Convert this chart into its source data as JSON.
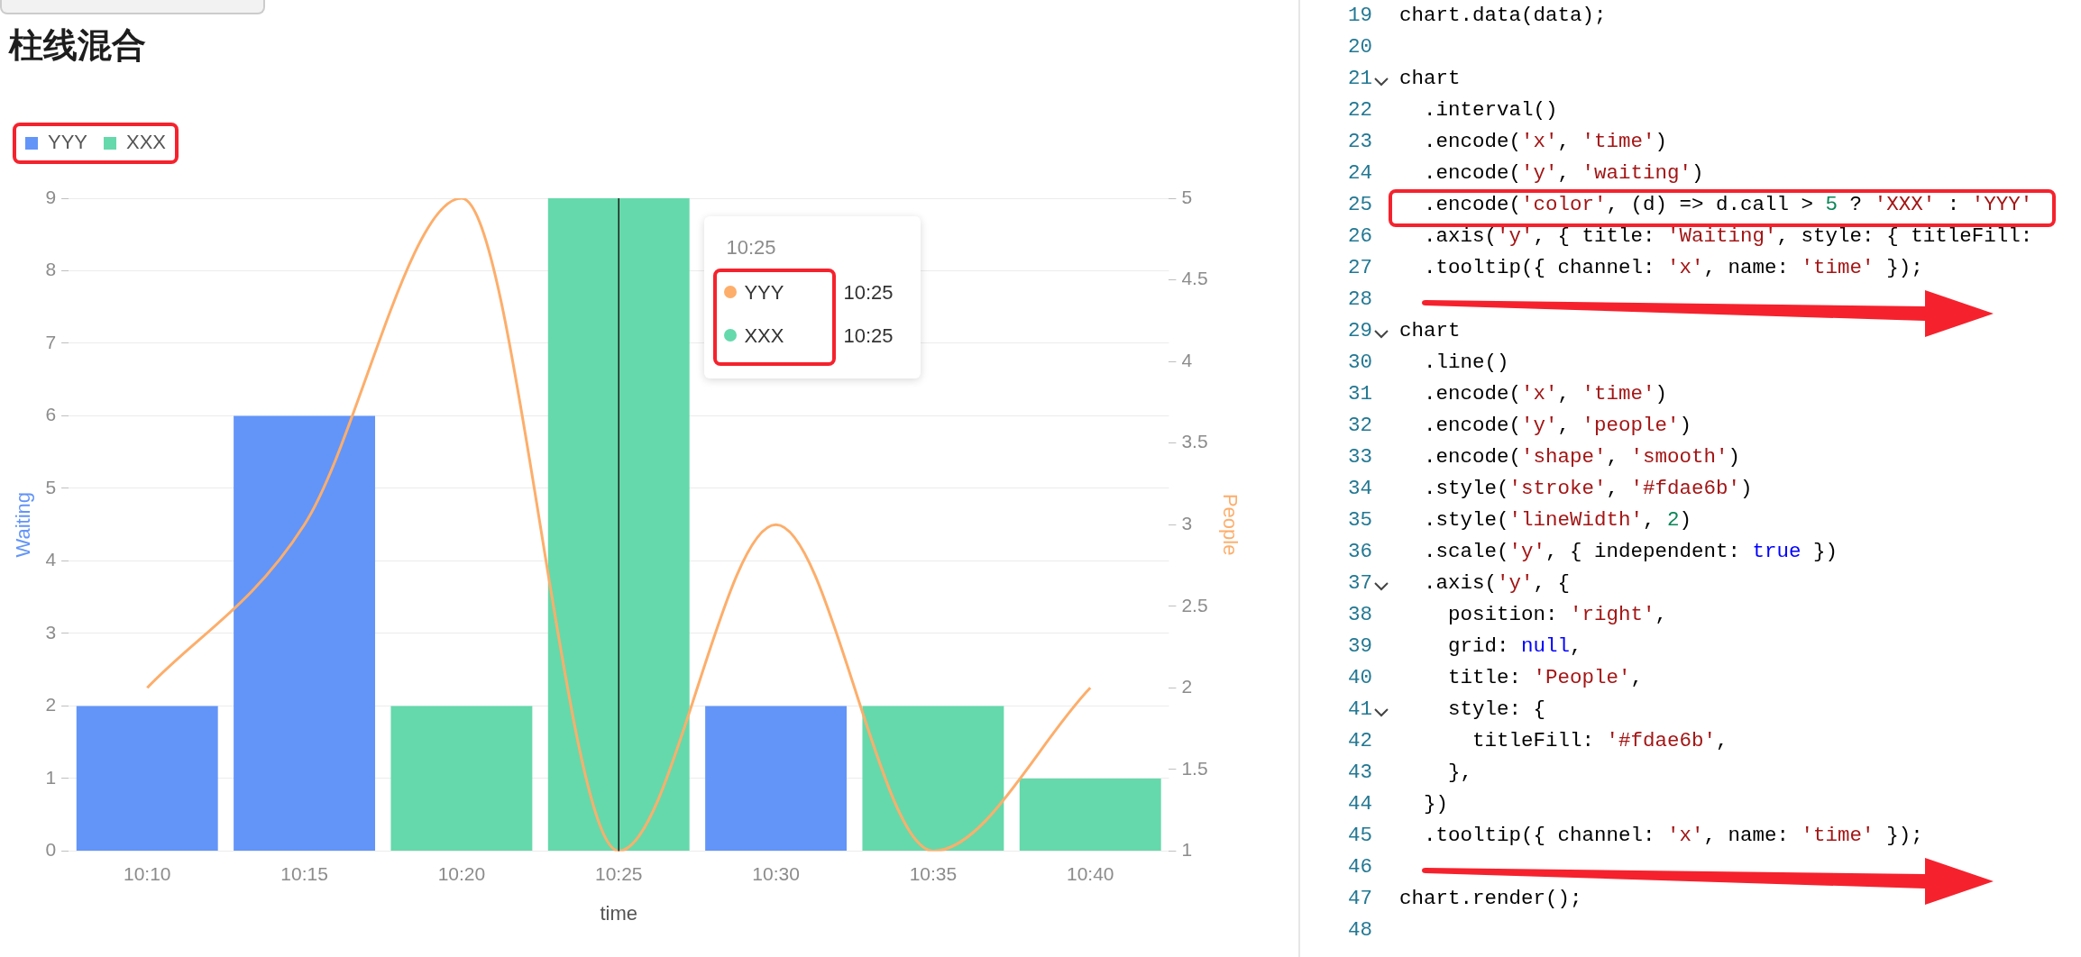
{
  "chart_data": {
    "type": "bar",
    "title": "柱线混合",
    "xlabel": "time",
    "ylabel": "Waiting",
    "y2label": "People",
    "categories": [
      "10:10",
      "10:15",
      "10:20",
      "10:25",
      "10:30",
      "10:35",
      "10:40"
    ],
    "stacked": true,
    "series": [
      {
        "name": "YYY",
        "color": "#6395f9",
        "values": [
          2,
          6,
          null,
          null,
          2,
          null,
          null
        ]
      },
      {
        "name": "XXX",
        "color": "#65d9ab",
        "values": [
          null,
          null,
          2,
          9,
          null,
          2,
          1
        ]
      },
      {
        "type": "line",
        "axis": "y2",
        "color": "#fdae6b",
        "values": [
          2,
          3,
          5,
          1,
          3,
          1,
          2
        ]
      }
    ],
    "ylim": [
      0,
      9
    ],
    "yticks": [
      0,
      1,
      2,
      3,
      4,
      5,
      6,
      7,
      8,
      9
    ],
    "y2lim": [
      1,
      5
    ],
    "y2ticks": [
      1,
      1.5,
      2,
      2.5,
      3,
      3.5,
      4,
      4.5,
      5
    ],
    "grid": "y",
    "legend": "top left",
    "marker": "none",
    "ref_lines": [
      {
        "axis": "x",
        "value": "10:25",
        "color": "#1f1f1f"
      }
    ],
    "annotations": [
      "10:25",
      "YYY",
      "10:25",
      "XXX",
      "10:25",
      "19 chart.data(data);",
      "20",
      "21 chart",
      "22   .interval()",
      "23   .encode('x', 'time')",
      "24   .encode('y', 'waiting')",
      "25   .encode('color', (d) => d.call > 5 ? 'XXX' : 'YYY'",
      "26   .axis('y', { title: 'Waiting', style: { titleFill:",
      "27   .tooltip({ channel: 'x', name: 'time' });",
      "28",
      "29 chart",
      "30   .line()",
      "31   .encode('x', 'time')",
      "32   .encode('y', 'people')",
      "33   .encode('shape', 'smooth')",
      "34   .style('stroke', '#fdae6b')",
      "35   .style('lineWidth', 2)",
      "36   .scale('y', { independent: true })",
      "37   .axis('y', {",
      "38     position: 'right',",
      "39     grid: null,",
      "40     title: 'People',",
      "41     style: {",
      "42       titleFill: '#fdae6b',",
      "43     },",
      "44   })",
      "45   .tooltip({ channel: 'x', name: 'time' });",
      "46",
      "47 chart.render();",
      "48"
    ]
  }
}
